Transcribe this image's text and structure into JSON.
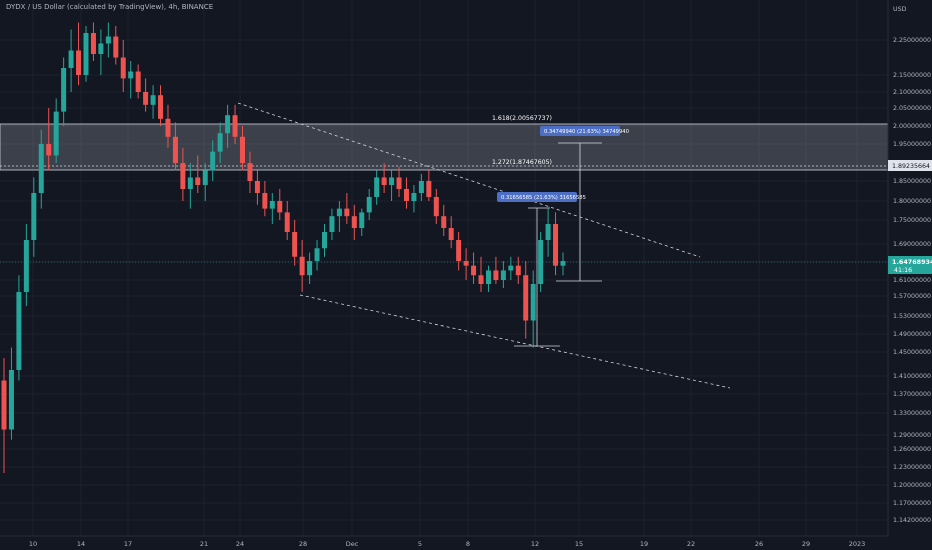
{
  "header": {
    "title": "DYDX / US Dollar (calculated by TradingView), 4h, BINANCE",
    "currency": "USD"
  },
  "colors": {
    "background": "#131722",
    "up": "#26a69a",
    "down": "#ef5350",
    "zone": "#9598a1",
    "current_price": "#26a69a",
    "tag": "#4c6fc5"
  },
  "annotations": {
    "fib_1618": "1.618(2.00567737)",
    "fib_1272": "1.272(1.87467605)",
    "measure_up": "0.34749940 (21.63%) 34749940",
    "measure_swing": "0.31656585 (21.63%) 31656585"
  },
  "price_labels": {
    "resistance": "1.89235664",
    "current": "1.64768934",
    "countdown": "41:16"
  },
  "chart_data": {
    "type": "candlestick",
    "title": "DYDX / US Dollar (calculated by TradingView), 4h, BINANCE",
    "y_unit": "USD",
    "ylim": [
      1.12,
      2.31
    ],
    "y_ticks": [
      2.25,
      2.15,
      2.1,
      2.05,
      2.0,
      1.95,
      1.89235664,
      1.85,
      1.8,
      1.75,
      1.69,
      1.64768934,
      1.61,
      1.57,
      1.53,
      1.49,
      1.45,
      1.41,
      1.37,
      1.33,
      1.29,
      1.26,
      1.23,
      1.2,
      1.17,
      1.142
    ],
    "y_tick_labels": [
      "2.25000000",
      "2.15000000",
      "2.10000000",
      "2.05000000",
      "2.00000000",
      "1.95000000",
      "1.89235664",
      "1.85000000",
      "1.80000000",
      "1.75000000",
      "1.69000000",
      "1.64768934",
      "1.61000000",
      "1.57000000",
      "1.53000000",
      "1.49000000",
      "1.45000000",
      "1.41000000",
      "1.37000000",
      "1.33000000",
      "1.29000000",
      "1.26000000",
      "1.23000000",
      "1.20000000",
      "1.17000000",
      "1.14200000"
    ],
    "x_tick_labels": [
      "10",
      "14",
      "17",
      "21",
      "24",
      "28",
      "Dec",
      "5",
      "8",
      "12",
      "15",
      "19",
      "22",
      "26",
      "29",
      "2023"
    ],
    "zone": {
      "low": 1.8747,
      "high": 2.0057
    },
    "resistance_line": 1.89235664,
    "current_price": 1.64768934,
    "grid": true,
    "candles": [
      [
        1.4,
        1.44,
        1.22,
        1.3
      ],
      [
        1.3,
        1.46,
        1.28,
        1.42
      ],
      [
        1.42,
        1.62,
        1.4,
        1.58
      ],
      [
        1.58,
        1.74,
        1.55,
        1.7
      ],
      [
        1.7,
        1.86,
        1.66,
        1.82
      ],
      [
        1.82,
        1.99,
        1.78,
        1.95
      ],
      [
        1.95,
        2.05,
        1.88,
        1.92
      ],
      [
        1.92,
        2.08,
        1.9,
        2.04
      ],
      [
        2.04,
        2.2,
        2.0,
        2.17
      ],
      [
        2.17,
        2.28,
        2.1,
        2.22
      ],
      [
        2.22,
        2.3,
        2.12,
        2.15
      ],
      [
        2.15,
        2.29,
        2.13,
        2.27
      ],
      [
        2.27,
        2.3,
        2.19,
        2.21
      ],
      [
        2.21,
        2.28,
        2.15,
        2.24
      ],
      [
        2.24,
        2.3,
        2.2,
        2.26
      ],
      [
        2.26,
        2.29,
        2.18,
        2.2
      ],
      [
        2.2,
        2.25,
        2.1,
        2.14
      ],
      [
        2.14,
        2.19,
        2.08,
        2.16
      ],
      [
        2.16,
        2.18,
        2.08,
        2.1
      ],
      [
        2.1,
        2.14,
        2.04,
        2.06
      ],
      [
        2.06,
        2.12,
        2.02,
        2.09
      ],
      [
        2.09,
        2.12,
        2.0,
        2.02
      ],
      [
        2.02,
        2.06,
        1.94,
        1.97
      ],
      [
        1.97,
        2.01,
        1.88,
        1.9
      ],
      [
        1.9,
        1.94,
        1.8,
        1.83
      ],
      [
        1.83,
        1.9,
        1.78,
        1.86
      ],
      [
        1.86,
        1.92,
        1.82,
        1.84
      ],
      [
        1.84,
        1.9,
        1.8,
        1.88
      ],
      [
        1.88,
        1.96,
        1.85,
        1.93
      ],
      [
        1.93,
        2.01,
        1.9,
        1.98
      ],
      [
        1.98,
        2.06,
        1.94,
        2.03
      ],
      [
        2.03,
        2.06,
        1.95,
        1.97
      ],
      [
        1.97,
        2.0,
        1.88,
        1.9
      ],
      [
        1.9,
        1.93,
        1.82,
        1.85
      ],
      [
        1.85,
        1.88,
        1.79,
        1.82
      ],
      [
        1.82,
        1.85,
        1.76,
        1.78
      ],
      [
        1.78,
        1.82,
        1.74,
        1.8
      ],
      [
        1.8,
        1.83,
        1.75,
        1.77
      ],
      [
        1.77,
        1.8,
        1.7,
        1.72
      ],
      [
        1.72,
        1.75,
        1.64,
        1.66
      ],
      [
        1.66,
        1.7,
        1.58,
        1.62
      ],
      [
        1.62,
        1.67,
        1.6,
        1.65
      ],
      [
        1.65,
        1.7,
        1.63,
        1.68
      ],
      [
        1.68,
        1.74,
        1.66,
        1.72
      ],
      [
        1.72,
        1.78,
        1.7,
        1.76
      ],
      [
        1.76,
        1.8,
        1.72,
        1.78
      ],
      [
        1.78,
        1.82,
        1.74,
        1.76
      ],
      [
        1.76,
        1.79,
        1.7,
        1.73
      ],
      [
        1.73,
        1.78,
        1.71,
        1.77
      ],
      [
        1.77,
        1.83,
        1.75,
        1.81
      ],
      [
        1.81,
        1.88,
        1.79,
        1.86
      ],
      [
        1.86,
        1.9,
        1.82,
        1.84
      ],
      [
        1.84,
        1.88,
        1.8,
        1.86
      ],
      [
        1.86,
        1.89,
        1.81,
        1.83
      ],
      [
        1.83,
        1.86,
        1.78,
        1.8
      ],
      [
        1.8,
        1.84,
        1.77,
        1.82
      ],
      [
        1.82,
        1.87,
        1.8,
        1.85
      ],
      [
        1.85,
        1.88,
        1.8,
        1.81
      ],
      [
        1.81,
        1.83,
        1.74,
        1.76
      ],
      [
        1.76,
        1.79,
        1.71,
        1.73
      ],
      [
        1.73,
        1.76,
        1.68,
        1.7
      ],
      [
        1.7,
        1.72,
        1.63,
        1.65
      ],
      [
        1.65,
        1.68,
        1.61,
        1.64
      ],
      [
        1.64,
        1.67,
        1.6,
        1.62
      ],
      [
        1.62,
        1.66,
        1.58,
        1.6
      ],
      [
        1.6,
        1.64,
        1.58,
        1.63
      ],
      [
        1.63,
        1.66,
        1.6,
        1.61
      ],
      [
        1.61,
        1.65,
        1.59,
        1.63
      ],
      [
        1.63,
        1.66,
        1.61,
        1.64
      ],
      [
        1.64,
        1.66,
        1.6,
        1.62
      ],
      [
        1.62,
        1.65,
        1.48,
        1.52
      ],
      [
        1.52,
        1.63,
        1.46,
        1.6
      ],
      [
        1.6,
        1.72,
        1.58,
        1.7
      ],
      [
        1.7,
        1.78,
        1.66,
        1.74
      ],
      [
        1.74,
        1.77,
        1.62,
        1.64
      ],
      [
        1.64,
        1.67,
        1.62,
        1.65
      ]
    ]
  }
}
